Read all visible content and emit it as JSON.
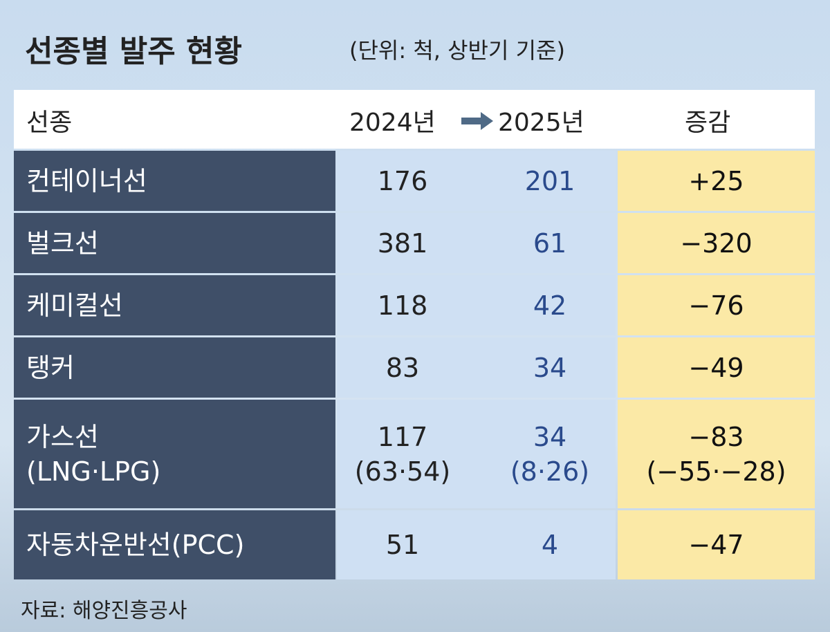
{
  "header": {
    "title": "선종별 발주 현황",
    "note": "(단위: 척, 상반기 기준)"
  },
  "table": {
    "columns": [
      "선종",
      "2024년",
      "2025년",
      "증감"
    ],
    "rows": [
      [
        [
          "컨테이너선"
        ],
        [
          "176"
        ],
        [
          "201"
        ],
        [
          "+25"
        ]
      ],
      [
        [
          "벌크선"
        ],
        [
          "381"
        ],
        [
          "61"
        ],
        [
          "−320"
        ]
      ],
      [
        [
          "케미컬선"
        ],
        [
          "118"
        ],
        [
          "42"
        ],
        [
          "−76"
        ]
      ],
      [
        [
          "탱커"
        ],
        [
          "83"
        ],
        [
          "34"
        ],
        [
          "−49"
        ]
      ],
      [
        [
          "가스선",
          "(LNG·LPG)"
        ],
        [
          "117",
          "(63·54)"
        ],
        [
          "34",
          "(8·26)"
        ],
        [
          "−83",
          "(−55·−28)"
        ]
      ],
      [
        [
          "자동차운반선(PCC)"
        ],
        [
          "51"
        ],
        [
          "4"
        ],
        [
          "−47"
        ]
      ]
    ]
  },
  "source": "자료: 해양진흥공사"
}
